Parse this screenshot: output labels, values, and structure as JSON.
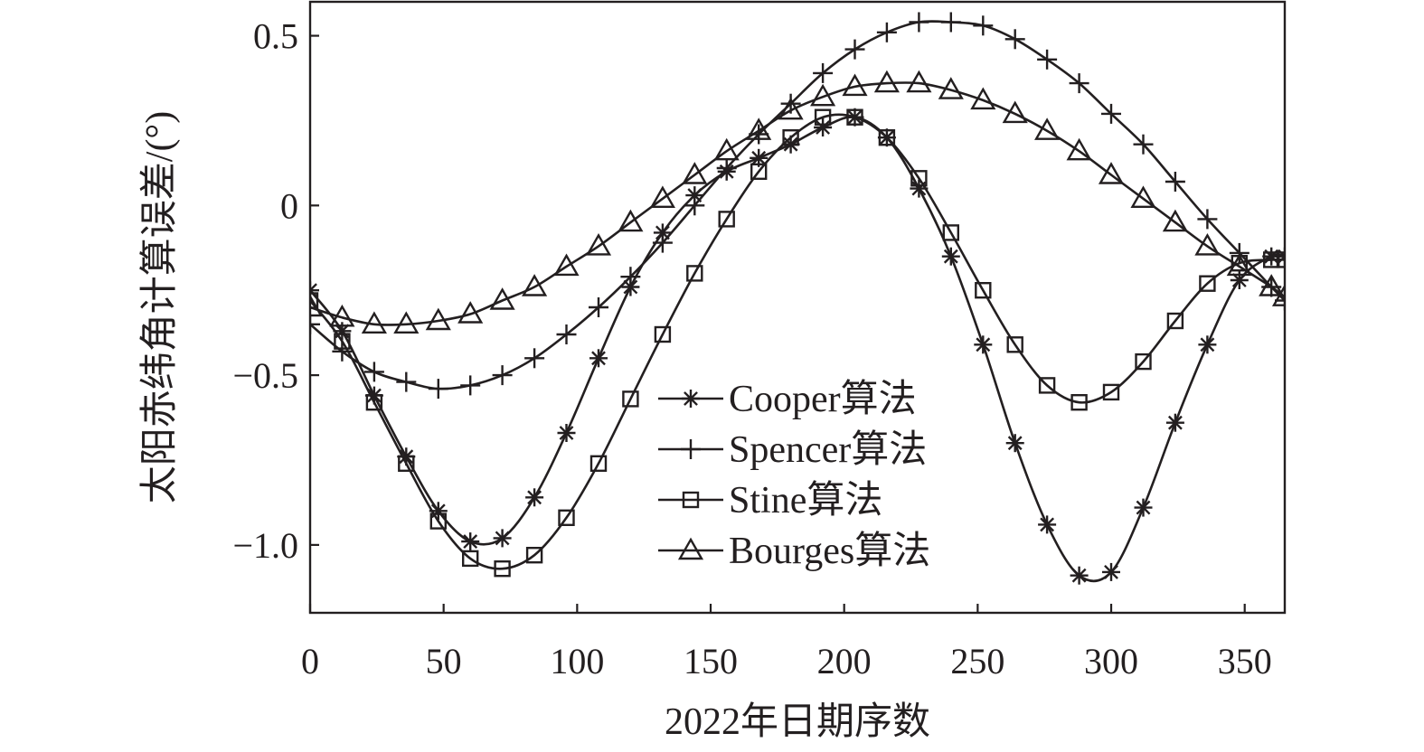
{
  "chart_data": {
    "type": "line",
    "xlabel": "2022年日期序数",
    "ylabel": "太阳赤纬角计算误差/(°)",
    "xlim": [
      0,
      365
    ],
    "ylim": [
      -1.2,
      0.6
    ],
    "x_ticks": [
      0,
      50,
      100,
      150,
      200,
      250,
      300,
      350
    ],
    "x_tick_labels": [
      "0",
      "50",
      "100",
      "150",
      "200",
      "250",
      "300",
      "350"
    ],
    "y_ticks": [
      0.5,
      0,
      -0.5,
      -1.0
    ],
    "y_tick_labels": [
      "0.5",
      "0",
      "−0.5",
      "−1.0"
    ],
    "grid": false,
    "legend_position": "bottom-center",
    "series": [
      {
        "name": "Cooper算法",
        "marker": "asterisk",
        "x": [
          0,
          12,
          24,
          36,
          48,
          60,
          72,
          84,
          96,
          108,
          120,
          132,
          144,
          156,
          168,
          180,
          192,
          204,
          216,
          228,
          240,
          252,
          264,
          276,
          288,
          300,
          312,
          324,
          336,
          348,
          360,
          365
        ],
        "y": [
          -0.25,
          -0.37,
          -0.56,
          -0.74,
          -0.9,
          -0.99,
          -0.98,
          -0.86,
          -0.67,
          -0.45,
          -0.24,
          -0.08,
          0.03,
          0.1,
          0.14,
          0.18,
          0.23,
          0.26,
          0.2,
          0.05,
          -0.15,
          -0.41,
          -0.7,
          -0.94,
          -1.09,
          -1.08,
          -0.89,
          -0.64,
          -0.41,
          -0.22,
          -0.15,
          -0.15
        ]
      },
      {
        "name": "Spencer算法",
        "marker": "plus",
        "x": [
          0,
          12,
          24,
          36,
          48,
          60,
          72,
          84,
          96,
          108,
          120,
          132,
          144,
          156,
          168,
          180,
          192,
          204,
          216,
          228,
          240,
          252,
          264,
          276,
          288,
          300,
          312,
          324,
          336,
          348,
          360,
          365
        ],
        "y": [
          -0.35,
          -0.43,
          -0.49,
          -0.52,
          -0.54,
          -0.53,
          -0.5,
          -0.45,
          -0.38,
          -0.3,
          -0.21,
          -0.11,
          0.0,
          0.11,
          0.21,
          0.3,
          0.39,
          0.46,
          0.51,
          0.54,
          0.54,
          0.53,
          0.49,
          0.43,
          0.36,
          0.27,
          0.18,
          0.07,
          -0.04,
          -0.14,
          -0.24,
          -0.28
        ]
      },
      {
        "name": "Stine算法",
        "marker": "square",
        "x": [
          0,
          12,
          24,
          36,
          48,
          60,
          72,
          84,
          96,
          108,
          120,
          132,
          144,
          156,
          168,
          180,
          192,
          204,
          216,
          228,
          240,
          252,
          264,
          276,
          288,
          300,
          312,
          324,
          336,
          348,
          360,
          365
        ],
        "y": [
          -0.28,
          -0.4,
          -0.58,
          -0.76,
          -0.93,
          -1.04,
          -1.07,
          -1.03,
          -0.92,
          -0.76,
          -0.57,
          -0.38,
          -0.2,
          -0.04,
          0.1,
          0.2,
          0.26,
          0.26,
          0.2,
          0.08,
          -0.08,
          -0.25,
          -0.41,
          -0.53,
          -0.58,
          -0.55,
          -0.46,
          -0.34,
          -0.23,
          -0.17,
          -0.16,
          -0.16
        ]
      },
      {
        "name": "Bourges算法",
        "marker": "triangle",
        "x": [
          0,
          12,
          24,
          36,
          48,
          60,
          72,
          84,
          96,
          108,
          120,
          132,
          144,
          156,
          168,
          180,
          192,
          204,
          216,
          228,
          240,
          252,
          264,
          276,
          288,
          300,
          312,
          324,
          336,
          348,
          360,
          365
        ],
        "y": [
          -0.3,
          -0.33,
          -0.35,
          -0.35,
          -0.34,
          -0.32,
          -0.28,
          -0.24,
          -0.18,
          -0.12,
          -0.05,
          0.02,
          0.09,
          0.16,
          0.22,
          0.28,
          0.32,
          0.35,
          0.36,
          0.36,
          0.34,
          0.31,
          0.27,
          0.22,
          0.16,
          0.09,
          0.02,
          -0.05,
          -0.12,
          -0.18,
          -0.24,
          -0.27
        ]
      }
    ]
  }
}
